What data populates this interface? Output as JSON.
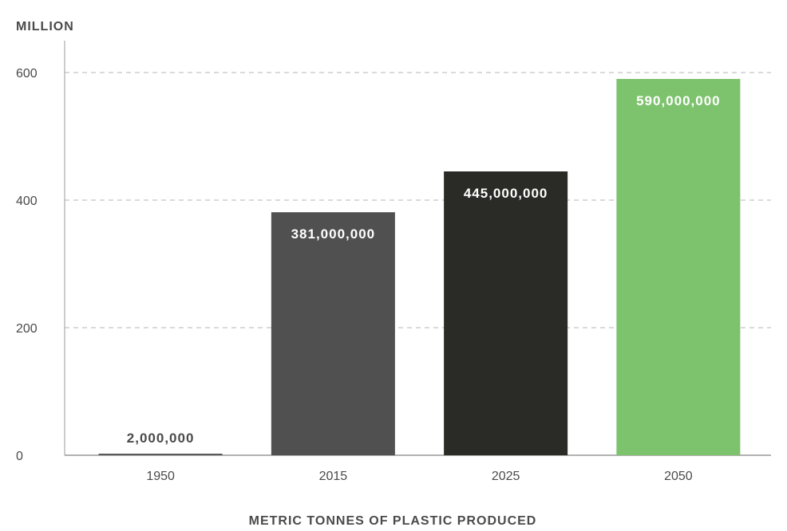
{
  "chart_data": {
    "type": "bar",
    "title": "",
    "unit_label": "MILLION",
    "xlabel": "METRIC TONNES OF PLASTIC PRODUCED",
    "ylabel": "",
    "ylim": [
      0,
      650
    ],
    "yticks": [
      0,
      200,
      400,
      600
    ],
    "grid": true,
    "categories": [
      "1950",
      "2015",
      "2025",
      "2050"
    ],
    "values": [
      2,
      381,
      445,
      590
    ],
    "data_labels": [
      "2,000,000",
      "381,000,000",
      "445,000,000",
      "590,000,000"
    ],
    "colors": [
      "#5a5a5a",
      "#505050",
      "#2a2a26",
      "#7dc26d"
    ]
  }
}
